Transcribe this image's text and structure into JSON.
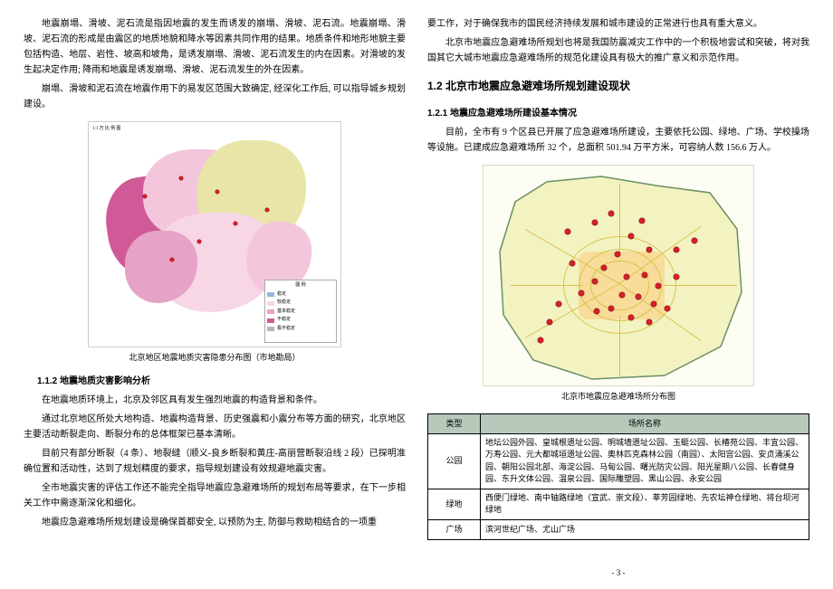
{
  "left": {
    "p1": "地震崩塌、滑坡、泥石流是指因地震的发生而诱发的崩塌、滑坡、泥石流。地震崩塌、滑坡、泥石流的形成是由震区的地质地貌和降水等因素共同作用的结果。地质条件和地形地貌主要包括构造、地层、岩性、坡高和坡角，是诱发崩塌、滑坡、泥石流发生的内在因素。对滑坡的发生起决定作用; 降雨和地震是诱发崩塌、滑坡、泥石流发生的外在因素。",
    "p2": "崩塌、滑坡和泥石流在地震作用下的易发区范围大致确定, 经深化工作后, 可以指导城乡规划建设。",
    "map_caption": "北京地区地震地质灾害隐患分布图（市地勘局）",
    "h1": "1.1.2 地震地质灾害影响分析",
    "p3": "在地震地质环境上，北京及邻区具有发生强烈地震的构造背景和条件。",
    "p4": "通过北京地区所处大地构造、地震构造背景、历史强震和小震分布等方面的研究，北京地区主要活动断裂走向、断裂分布的总体框架已基本清晰。",
    "p5": "目前只有部分断裂（4 条）、地裂缝（顺义-良乡断裂和黄庄-高丽营断裂沿线 2 段）已探明准确位置和活动性，达到了规划精度的要求，指导规划建设有效规避地震灾害。",
    "p6": "全市地震灾害的评估工作还不能完全指导地震应急避难场所的规划布局等要求，在下一步相关工作中需逐渐深化和细化。",
    "p7": "地震应急避难场所规划建设是确保首都安全, 以预防为主, 防御与救助相结合的一项重",
    "legend_title": "图  例",
    "legend_items": [
      {
        "c": "#9db6e0",
        "t": "稳定"
      },
      {
        "c": "#f7d6e6",
        "t": "较稳定"
      },
      {
        "c": "#e7a3c7",
        "t": "基本稳定"
      },
      {
        "c": "#d05a97",
        "t": "不稳定"
      },
      {
        "c": "#b6b6b6",
        "t": "极不稳定"
      }
    ]
  },
  "right": {
    "p1": "要工作，对于确保我市的国民经济持续发展和城市建设的正常进行也具有重大意义。",
    "p2": "北京市地震应急避难场所规划也将是我国防震减灾工作中的一个积极地尝试和突破，将对我国其它大城市地震应急避难场所的规范化建设具有极大的推广意义和示范作用。",
    "h_sec": "1.2 北京市地震应急避难场所规划建设现状",
    "h_sub": "1.2.1 地震应急避难场所建设基本情况",
    "p3": "目前，全市有 9 个区县已开展了应急避难场所建设，主要依托公园、绿地、广场、学校操场等设施。已建成应急避难场所 32 个，总面积 501.94 万平方米，可容纳人数 156.6 万人。",
    "map_caption": "北京市地震应急避难场所分布图",
    "table": {
      "head": [
        "类型",
        "场所名称"
      ],
      "rows": [
        {
          "cat": "公园",
          "names": "地坛公园外园、皇城根遗址公园、明城墙遗址公园、玉蜓公园、长椿苑公园、丰宜公园、万寿公园、元大都城垣遗址公园、奥林匹克森林公园（南园）、太阳宫公园、安贞涌溪公园、朝阳公园北部、海淀公园、马甸公园、曙光防灾公园、阳光星期八公园、长春健身园、东升文体公园、温泉公园、国际雕塑园、黑山公园、永安公园"
        },
        {
          "cat": "绿地",
          "names": "西便门绿地、南中轴路绿地（宣武、崇文段）、莘芳园绿地、先农坛神仓绿地、将台坝河绿地"
        },
        {
          "cat": "广场",
          "names": "滨河世纪广场、尤山广场"
        }
      ]
    }
  },
  "page_num": "- 3 -",
  "colors": {
    "map1_regions": [
      "#e7a3c7",
      "#f3c6dc",
      "#d05a97",
      "#f7d6e6",
      "#e9e5a9"
    ],
    "map1_bg": "#ffffff",
    "map2_bg": "#f3f3c2",
    "map2_urban": "#f7dc9a",
    "map2_road": "#d9c24a",
    "dot": "#d4202a",
    "map2_border": "#6a8f63",
    "table_header_bg": "#b8c9bc"
  },
  "dots": [
    [
      120,
      60
    ],
    [
      138,
      50
    ],
    [
      160,
      75
    ],
    [
      172,
      58
    ],
    [
      180,
      90
    ],
    [
      145,
      95
    ],
    [
      130,
      110
    ],
    [
      155,
      120
    ],
    [
      175,
      118
    ],
    [
      190,
      130
    ],
    [
      120,
      125
    ],
    [
      105,
      138
    ],
    [
      150,
      140
    ],
    [
      168,
      142
    ],
    [
      185,
      150
    ],
    [
      138,
      155
    ],
    [
      122,
      158
    ],
    [
      160,
      165
    ],
    [
      180,
      170
    ],
    [
      200,
      155
    ],
    [
      210,
      120
    ],
    [
      210,
      90
    ],
    [
      95,
      105
    ],
    [
      80,
      150
    ],
    [
      70,
      170
    ],
    [
      60,
      190
    ],
    [
      230,
      80
    ],
    [
      90,
      70
    ]
  ]
}
